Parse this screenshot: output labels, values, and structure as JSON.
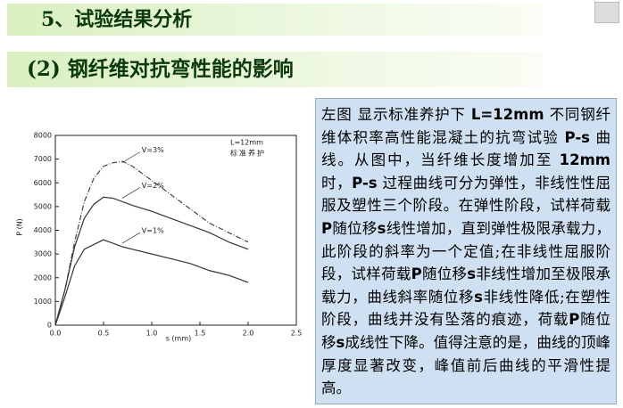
{
  "slide": {
    "title": "5、试验结果分析",
    "subtitle": "(2) 钢纤维对抗弯性能的影响",
    "paragraph_runs": [
      {
        "text": "左图 显示标准养护下 ",
        "bold": false
      },
      {
        "text": "L=12mm",
        "bold": true
      },
      {
        "text": " 不同钢纤维体积率高性能混凝土的抗弯试验 ",
        "bold": false
      },
      {
        "text": "P-s",
        "bold": true
      },
      {
        "text": " 曲线。从图中，当纤维长度增加至 ",
        "bold": false
      },
      {
        "text": "12mm",
        "bold": true
      },
      {
        "text": " 时，",
        "bold": false
      },
      {
        "text": "P-s",
        "bold": true
      },
      {
        "text": " 过程曲线可分为弹性，非线性性屈服及塑性三个阶段。在弹性阶段，试样荷载",
        "bold": false
      },
      {
        "text": "P",
        "bold": true
      },
      {
        "text": "随位移",
        "bold": false
      },
      {
        "text": "s",
        "bold": true
      },
      {
        "text": "线性增加，直到弹性极限承载力，此阶段的斜率为一个定值;在非线性屈服阶段，试样荷载",
        "bold": false
      },
      {
        "text": "P",
        "bold": true
      },
      {
        "text": "随位移",
        "bold": false
      },
      {
        "text": "s",
        "bold": true
      },
      {
        "text": "非线性增加至极限承载力，曲线斜率随位移",
        "bold": false
      },
      {
        "text": "s",
        "bold": true
      },
      {
        "text": "非线性降低;在塑性阶段，曲线并没有坠落的痕迹，荷载",
        "bold": false
      },
      {
        "text": "P",
        "bold": true
      },
      {
        "text": "随位移",
        "bold": false
      },
      {
        "text": "s",
        "bold": true
      },
      {
        "text": "成线性下降。值得注意的是，曲线的顶峰厚度显著改变，峰值前后曲线的平滑性提高。",
        "bold": false
      }
    ]
  },
  "chart_data": {
    "type": "line",
    "x_label": "s (mm)",
    "y_label": "P (N)",
    "annotations": [
      "L=12mm",
      "标准养护"
    ],
    "x": [
      0,
      0.1,
      0.2,
      0.3,
      0.4,
      0.5,
      0.6,
      0.7,
      0.8,
      1.0,
      1.2,
      1.4,
      1.6,
      1.8,
      2.0
    ],
    "series": [
      {
        "name": "V=3%",
        "color": "#444444",
        "dash": "6 2 1 2",
        "values": [
          0,
          1500,
          3500,
          5200,
          6200,
          6700,
          6850,
          6900,
          6700,
          6100,
          5500,
          4900,
          4300,
          3900,
          3500
        ]
      },
      {
        "name": "V=2%",
        "color": "#333333",
        "dash": "none",
        "values": [
          0,
          1500,
          3300,
          4500,
          5100,
          5400,
          5350,
          5200,
          5050,
          4800,
          4500,
          4200,
          3900,
          3500,
          3200
        ]
      },
      {
        "name": "V=1%",
        "color": "#333333",
        "dash": "none",
        "values": [
          0,
          1200,
          2500,
          3200,
          3400,
          3600,
          3450,
          3300,
          3200,
          3000,
          2800,
          2600,
          2300,
          2100,
          1800
        ]
      }
    ],
    "xlim": [
      0,
      2.5
    ],
    "ylim": [
      0,
      8000
    ],
    "xticks": [
      {
        "value": 0,
        "label": "0.0"
      },
      {
        "value": 0.5,
        "label": "0.5"
      },
      {
        "value": 1,
        "label": "1.0"
      },
      {
        "value": 1.5,
        "label": "1.5"
      },
      {
        "value": 2,
        "label": "2.0"
      },
      {
        "value": 2.5,
        "label": "2.5"
      }
    ],
    "yticks": [
      0,
      1000,
      2000,
      3000,
      4000,
      5000,
      6000,
      7000,
      8000
    ]
  }
}
